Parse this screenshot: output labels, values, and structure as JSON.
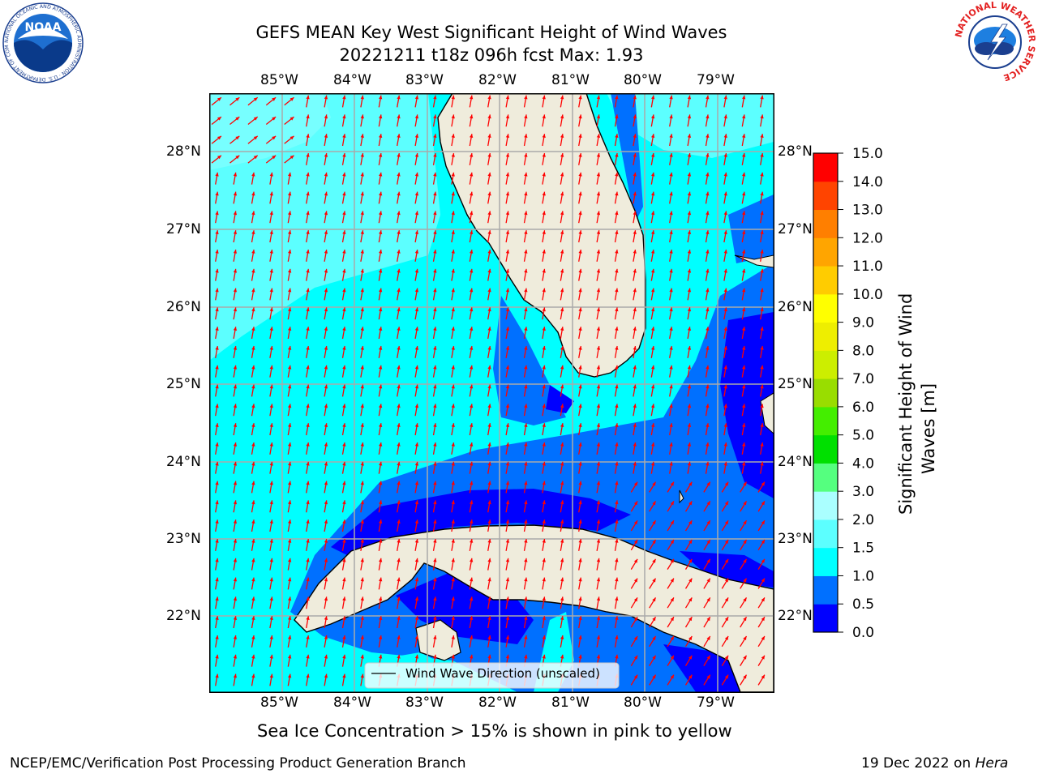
{
  "title": {
    "line1": "GEFS MEAN Key West Significant Height of Wind Waves",
    "line2": "20221211 t18z 096h fcst   Max: 1.93"
  },
  "axes": {
    "lon_labels": [
      "85°W",
      "84°W",
      "83°W",
      "82°W",
      "81°W",
      "80°W",
      "79°W"
    ],
    "lat_labels": [
      "28°N",
      "27°N",
      "26°N",
      "25°N",
      "24°N",
      "23°N",
      "22°N"
    ]
  },
  "legend": {
    "label": "Wind Wave Direction (unscaled)"
  },
  "colorbar": {
    "label_line1": "Significant Height of Wind",
    "label_line2": "Waves [m]",
    "ticks": [
      "0.0",
      "0.5",
      "1.0",
      "1.5",
      "2.0",
      "3.0",
      "4.0",
      "5.0",
      "6.0",
      "7.0",
      "8.0",
      "9.0",
      "10.0",
      "11.0",
      "12.0",
      "13.0",
      "14.0",
      "15.0"
    ],
    "colors": [
      "#0000ff",
      "#0070ff",
      "#00ffff",
      "#5cffff",
      "#aaffff",
      "#55ff7f",
      "#00e000",
      "#44ee00",
      "#99dd00",
      "#ccee00",
      "#eeee00",
      "#ffff00",
      "#ffcc00",
      "#ffa500",
      "#ff7f00",
      "#ff4400",
      "#ff0000"
    ]
  },
  "notes": {
    "sea_ice": "Sea Ice Concentration > 15% is shown in pink to yellow"
  },
  "footer": {
    "left": "NCEP/EMC/Verification Post Processing Product Generation Branch",
    "date": "19 Dec 2022 on ",
    "host": "Hera"
  },
  "logos": {
    "noaa": {
      "text": "NOAA",
      "ring": "NATIONAL OCEANIC AND ATMOSPHERIC ADMINISTRATION · U.S. DEPARTMENT OF COMMERCE"
    },
    "nws": {
      "ring": "NATIONAL WEATHER SERVICE"
    }
  }
}
